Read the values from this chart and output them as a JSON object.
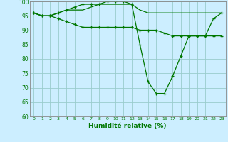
{
  "xlabel": "Humidité relative (%)",
  "xlim": [
    -0.5,
    23.5
  ],
  "ylim": [
    60,
    100
  ],
  "yticks": [
    60,
    65,
    70,
    75,
    80,
    85,
    90,
    95,
    100
  ],
  "xticks": [
    0,
    1,
    2,
    3,
    4,
    5,
    6,
    7,
    8,
    9,
    10,
    11,
    12,
    13,
    14,
    15,
    16,
    17,
    18,
    19,
    20,
    21,
    22,
    23
  ],
  "bg_color": "#cceeff",
  "grid_color": "#99cccc",
  "line_color": "#007700",
  "line1_x": [
    0,
    1,
    2,
    3,
    4,
    5,
    6,
    7,
    8,
    9,
    10,
    11,
    12,
    13,
    14,
    15,
    16,
    17,
    18,
    19,
    20,
    21,
    22,
    23
  ],
  "line1_y": [
    96,
    95,
    95,
    96,
    97,
    98,
    99,
    99,
    99,
    100,
    100,
    100,
    99,
    85,
    72,
    68,
    68,
    74,
    81,
    88,
    88,
    88,
    94,
    96
  ],
  "line2_x": [
    0,
    1,
    2,
    3,
    4,
    5,
    6,
    7,
    8,
    9,
    10,
    11,
    12,
    13,
    14,
    15,
    16,
    17,
    18,
    19,
    20,
    21,
    22,
    23
  ],
  "line2_y": [
    96,
    95,
    95,
    96,
    97,
    97,
    97,
    98,
    99,
    99,
    99,
    99,
    99,
    97,
    96,
    96,
    96,
    96,
    96,
    96,
    96,
    96,
    96,
    96
  ],
  "line3_x": [
    0,
    1,
    2,
    3,
    4,
    5,
    6,
    7,
    8,
    9,
    10,
    11,
    12,
    13,
    14,
    15,
    16,
    17,
    18,
    19,
    20,
    21,
    22,
    23
  ],
  "line3_y": [
    96,
    95,
    95,
    94,
    93,
    92,
    91,
    91,
    91,
    91,
    91,
    91,
    91,
    90,
    90,
    90,
    89,
    88,
    88,
    88,
    88,
    88,
    88,
    88
  ]
}
